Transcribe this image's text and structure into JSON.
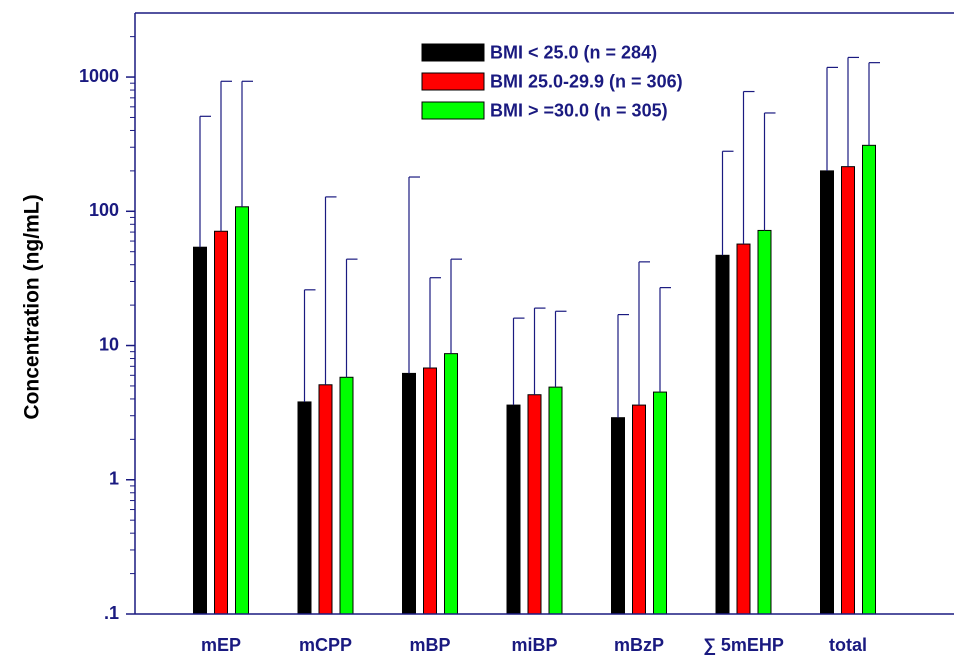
{
  "chart_data": {
    "type": "bar",
    "ylabel": "Concentration (ng/mL)",
    "yscale": "log",
    "ylim": [
      0.1,
      3000
    ],
    "ytick_values": [
      0.1,
      1,
      10,
      100,
      1000
    ],
    "ytick_labels": [
      ".1",
      "1",
      "10",
      "100",
      "1000"
    ],
    "categories": [
      "mEP",
      "mCPP",
      "mBP",
      "miBP",
      "mBzP",
      "∑ 5mEHP",
      "total"
    ],
    "series": [
      {
        "name": "BMI < 25.0 (n = 284)",
        "color": "#000000",
        "values": [
          54,
          3.8,
          6.2,
          3.6,
          2.9,
          47,
          200
        ],
        "error_upper": [
          510,
          26,
          180,
          16,
          17,
          280,
          1180
        ]
      },
      {
        "name": "BMI 25.0-29.9 (n = 306)",
        "color": "#ff0000",
        "values": [
          71,
          5.1,
          6.8,
          4.3,
          3.6,
          57,
          215
        ],
        "error_upper": [
          930,
          128,
          32,
          19,
          42,
          780,
          1400
        ]
      },
      {
        "name": "BMI > =30.0 (n = 305)",
        "color": "#00ff00",
        "values": [
          108,
          5.8,
          8.7,
          4.9,
          4.5,
          72,
          310
        ],
        "error_upper": [
          930,
          44,
          44,
          18,
          27,
          540,
          1280
        ]
      }
    ],
    "legend_position": "top-center",
    "grid": false,
    "axis_color": "#1a1a80",
    "text_color": "#1a1a80"
  }
}
